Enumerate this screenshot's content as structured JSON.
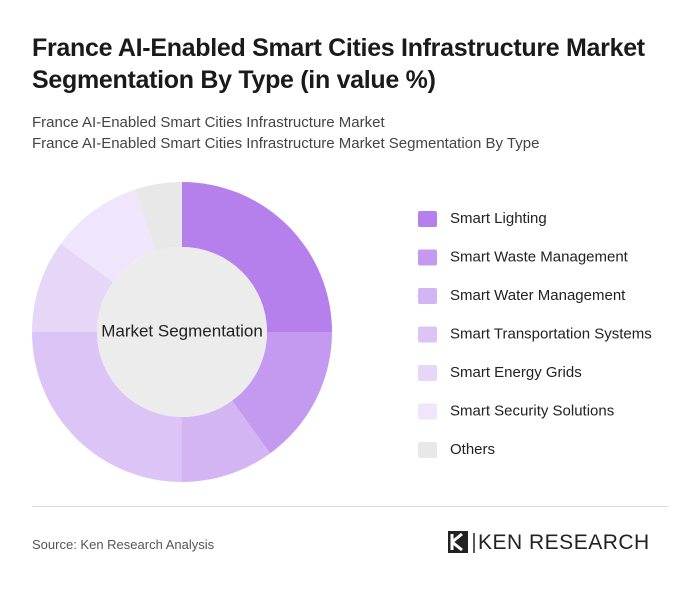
{
  "chart_data": {
    "type": "donut",
    "title": "France AI-Enabled Smart Cities Infrastructure Market Segmentation By Type (in value %)",
    "subtitle": [
      "France AI-Enabled Smart Cities Infrastructure Market",
      "France AI-Enabled Smart Cities Infrastructure Market Segmentation By Type"
    ],
    "center_label": "Market Segmentation",
    "categories": [
      "Smart Lighting",
      "Smart Waste Management",
      "Smart Water Management",
      "Smart Transportation Systems",
      "Smart Energy Grids",
      "Smart Security Solutions",
      "Others"
    ],
    "values": [
      25,
      15,
      10,
      25,
      10,
      10,
      5
    ],
    "colors": [
      "#b57fec",
      "#c49af0",
      "#d4b5f4",
      "#dcc5f6",
      "#e6d6f8",
      "#efe6fb",
      "#e8e8e8"
    ]
  },
  "footer": {
    "source": "Source: Ken Research Analysis",
    "brand": "KEN RESEARCH"
  }
}
